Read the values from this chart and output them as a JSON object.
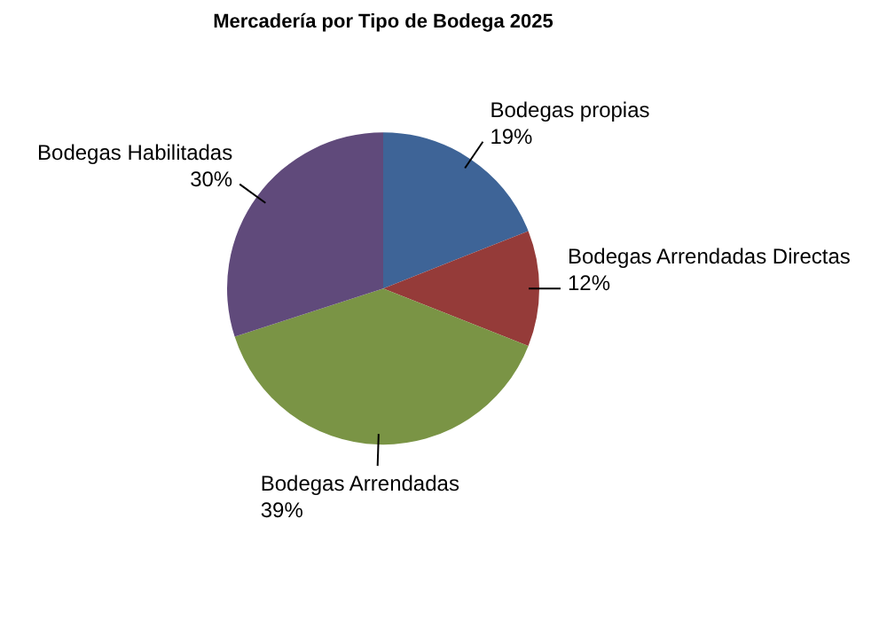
{
  "chart_data": {
    "type": "pie",
    "title": "Mercadería por Tipo de Bodega 2025",
    "categories": [
      "Bodegas propias",
      "Bodegas Arrendadas Directas",
      "Bodegas Arrendadas",
      "Bodegas Habilitadas"
    ],
    "values": [
      19,
      12,
      39,
      30
    ],
    "value_labels": [
      "19%",
      "12%",
      "39%",
      "30%"
    ],
    "colors": [
      "#3e6497",
      "#953b39",
      "#7a9445",
      "#604a7b"
    ],
    "legend": false
  }
}
